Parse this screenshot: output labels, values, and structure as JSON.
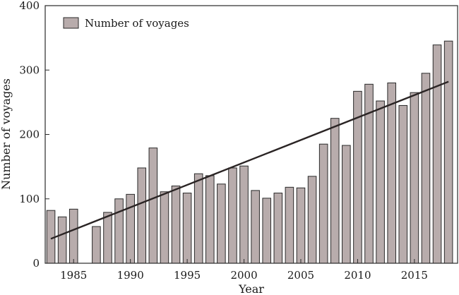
{
  "chart_data": {
    "type": "bar",
    "title": "",
    "xlabel": "Year",
    "ylabel": "Number of voyages",
    "xlim": [
      1982.5,
      2018.8
    ],
    "ylim": [
      0,
      400
    ],
    "x_ticks": [
      "1985",
      "1990",
      "1995",
      "2000",
      "2005",
      "2010",
      "2015"
    ],
    "y_ticks": [
      "0",
      "100",
      "200",
      "300",
      "400"
    ],
    "grid": false,
    "legend": {
      "position": "top-left",
      "entries": [
        "Number of voyages"
      ]
    },
    "colors": {
      "bar_fill": "#b8acac",
      "bar_stroke": "#2a2a2a",
      "trend_line": "#2a2424"
    },
    "series": [
      {
        "name": "Number of voyages",
        "x": [
          1983,
          1984,
          1985,
          1986,
          1987,
          1988,
          1989,
          1990,
          1991,
          1992,
          1993,
          1994,
          1995,
          1996,
          1997,
          1998,
          1999,
          2000,
          2001,
          2002,
          2003,
          2004,
          2005,
          2006,
          2007,
          2008,
          2009,
          2010,
          2011,
          2012,
          2013,
          2014,
          2015,
          2016,
          2017,
          2018
        ],
        "values": [
          82,
          72,
          84,
          null,
          57,
          79,
          100,
          107,
          148,
          179,
          111,
          120,
          109,
          139,
          136,
          123,
          148,
          151,
          113,
          101,
          109,
          118,
          117,
          135,
          185,
          225,
          183,
          267,
          278,
          252,
          280,
          245,
          265,
          295,
          339,
          345
        ]
      }
    ],
    "trend_line": {
      "x": [
        1983,
        2018
      ],
      "y": [
        38,
        282
      ]
    }
  }
}
